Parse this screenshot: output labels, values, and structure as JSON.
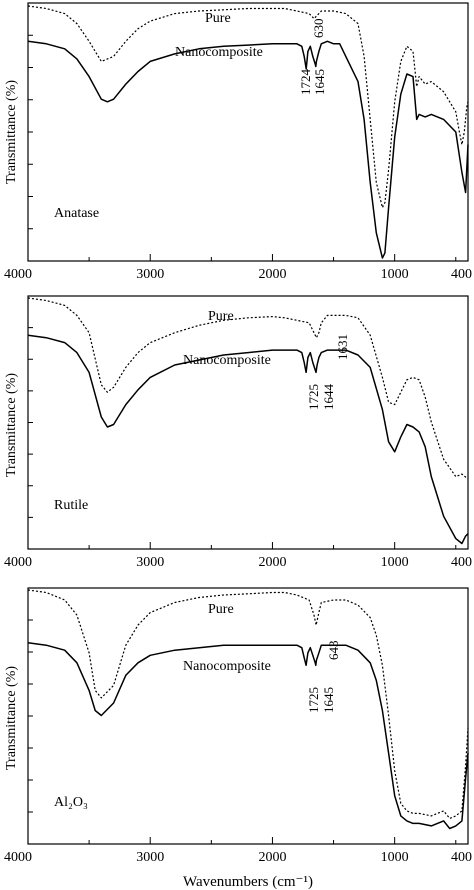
{
  "figure": {
    "ylabel": "Transmittance (%)",
    "xlabel": "Wavenumbers (cm⁻¹)"
  },
  "chart_data": [
    {
      "type": "line",
      "panel_label": "Anatase",
      "xlabel": "",
      "ylabel": "Transmittance (%)",
      "xlim": [
        4000,
        400
      ],
      "ylim": [
        0,
        100
      ],
      "x_ticks": [
        4000,
        3000,
        2000,
        1000,
        400
      ],
      "series": [
        {
          "name": "Pure",
          "style": "dotted",
          "x": [
            4000,
            3850,
            3700,
            3600,
            3500,
            3400,
            3300,
            3200,
            3100,
            3000,
            2800,
            2600,
            2400,
            2200,
            2000,
            1900,
            1800,
            1700,
            1680,
            1660,
            1640,
            1620,
            1600,
            1500,
            1400,
            1300,
            1250,
            1200,
            1150,
            1100,
            1080,
            1050,
            1000,
            950,
            900,
            850,
            820,
            800,
            750,
            700,
            650,
            600,
            550,
            500,
            470,
            450,
            430,
            410,
            400
          ],
          "y": [
            100,
            99,
            97,
            93,
            86,
            78,
            80,
            86,
            91,
            94,
            97,
            98,
            98.5,
            99,
            99,
            99,
            98,
            97,
            96,
            95,
            96,
            97,
            98,
            98,
            97,
            93,
            80,
            55,
            30,
            20,
            22,
            35,
            62,
            78,
            84,
            82,
            68,
            72,
            69,
            70,
            68,
            66,
            62,
            58,
            50,
            45,
            50,
            60,
            62
          ]
        },
        {
          "name": "Nanocomposite",
          "style": "solid",
          "x": [
            4000,
            3850,
            3700,
            3600,
            3500,
            3400,
            3350,
            3300,
            3200,
            3100,
            3000,
            2800,
            2600,
            2400,
            2200,
            2000,
            1800,
            1760,
            1740,
            1724,
            1710,
            1690,
            1670,
            1650,
            1645,
            1640,
            1620,
            1600,
            1550,
            1500,
            1450,
            1400,
            1300,
            1250,
            1200,
            1150,
            1100,
            1080,
            1050,
            1000,
            950,
            900,
            850,
            820,
            800,
            750,
            700,
            600,
            500,
            450,
            420,
            400
          ],
          "y": [
            86,
            85,
            83,
            79,
            72,
            63,
            62,
            63,
            69,
            74,
            78,
            81,
            83,
            84,
            84.5,
            85,
            85,
            84,
            80,
            75,
            82,
            84,
            80,
            77,
            76,
            78,
            82,
            85,
            86,
            85,
            85,
            80,
            70,
            55,
            30,
            10,
            0,
            2,
            20,
            48,
            65,
            73,
            72,
            55,
            57,
            56,
            57,
            55,
            50,
            34,
            26,
            45
          ]
        }
      ],
      "annotations": [
        "Pure",
        "Nanocomposite",
        "630",
        "1724",
        "1645"
      ]
    },
    {
      "type": "line",
      "panel_label": "Rutile",
      "xlabel": "",
      "ylabel": "Transmittance (%)",
      "xlim": [
        4000,
        400
      ],
      "ylim": [
        0,
        100
      ],
      "x_ticks": [
        4000,
        3000,
        2000,
        1000,
        400
      ],
      "series": [
        {
          "name": "Pure",
          "style": "dotted",
          "x": [
            4000,
            3850,
            3700,
            3600,
            3500,
            3400,
            3350,
            3300,
            3200,
            3100,
            3000,
            2800,
            2600,
            2400,
            2200,
            2000,
            1900,
            1800,
            1700,
            1660,
            1640,
            1620,
            1600,
            1550,
            1500,
            1400,
            1300,
            1200,
            1100,
            1050,
            1000,
            950,
            900,
            850,
            800,
            750,
            700,
            600,
            500,
            450,
            400
          ],
          "y": [
            100,
            99,
            97,
            93,
            86,
            65,
            62,
            64,
            72,
            78,
            82,
            86,
            89,
            91,
            92,
            92.5,
            92,
            91,
            90,
            86,
            84,
            86,
            90,
            93,
            93,
            93,
            92,
            85,
            68,
            58,
            57,
            62,
            67,
            68,
            67,
            60,
            50,
            35,
            28,
            29,
            27
          ]
        },
        {
          "name": "Nanocomposite",
          "style": "solid",
          "x": [
            4000,
            3850,
            3700,
            3600,
            3500,
            3400,
            3350,
            3300,
            3200,
            3100,
            3000,
            2800,
            2600,
            2400,
            2200,
            2000,
            1800,
            1760,
            1740,
            1725,
            1710,
            1690,
            1670,
            1650,
            1644,
            1635,
            1620,
            1600,
            1550,
            1500,
            1400,
            1300,
            1200,
            1100,
            1050,
            1000,
            950,
            900,
            850,
            800,
            750,
            700,
            600,
            500,
            450,
            420,
            400
          ],
          "y": [
            85,
            84,
            82,
            78,
            70,
            52,
            48,
            49,
            57,
            63,
            68,
            73,
            75,
            77,
            78,
            79,
            79,
            78,
            74,
            70,
            76,
            78,
            74,
            71,
            70,
            73,
            76,
            78,
            79,
            79,
            79,
            77,
            72,
            55,
            42,
            38,
            44,
            49,
            48,
            46,
            40,
            28,
            12,
            3,
            1,
            4,
            5
          ]
        }
      ],
      "annotations": [
        "Pure",
        "Nanocomposite",
        "1631",
        "1725",
        "1644"
      ]
    },
    {
      "type": "line",
      "panel_label": "Al₂O₃",
      "xlabel": "Wavenumbers (cm⁻¹)",
      "ylabel": "Transmittance (%)",
      "xlim": [
        4000,
        400
      ],
      "ylim": [
        0,
        100
      ],
      "x_ticks": [
        4000,
        3000,
        2000,
        1000,
        400
      ],
      "series": [
        {
          "name": "Pure",
          "style": "dotted",
          "x": [
            4000,
            3850,
            3700,
            3600,
            3500,
            3450,
            3400,
            3300,
            3200,
            3100,
            3000,
            2800,
            2600,
            2400,
            2200,
            2000,
            1900,
            1800,
            1700,
            1660,
            1643,
            1625,
            1600,
            1500,
            1400,
            1300,
            1200,
            1150,
            1100,
            1050,
            1000,
            950,
            900,
            850,
            800,
            700,
            600,
            550,
            500,
            450,
            420,
            400
          ],
          "y": [
            100,
            99,
            96,
            90,
            75,
            60,
            57,
            62,
            78,
            86,
            91,
            95,
            97,
            98,
            98.5,
            99,
            99,
            98,
            96,
            90,
            86,
            90,
            95,
            96,
            96,
            94,
            89,
            82,
            70,
            50,
            28,
            15,
            12,
            11,
            11,
            10,
            12,
            9,
            10,
            12,
            30,
            45
          ]
        },
        {
          "name": "Nanocomposite",
          "style": "solid",
          "x": [
            4000,
            3850,
            3700,
            3600,
            3500,
            3450,
            3400,
            3300,
            3200,
            3100,
            3000,
            2800,
            2600,
            2400,
            2200,
            2000,
            1800,
            1760,
            1740,
            1725,
            1710,
            1690,
            1670,
            1650,
            1645,
            1640,
            1620,
            1600,
            1500,
            1400,
            1300,
            1200,
            1150,
            1100,
            1050,
            1000,
            950,
            900,
            850,
            800,
            700,
            600,
            550,
            500,
            450,
            420,
            400
          ],
          "y": [
            79,
            78,
            76,
            71,
            60,
            52,
            50,
            55,
            66,
            71,
            74,
            76,
            77,
            78,
            78,
            78,
            78,
            77,
            73,
            70,
            75,
            77,
            74,
            71,
            70,
            72,
            75,
            78,
            78,
            78,
            76,
            71,
            64,
            52,
            35,
            18,
            10,
            8,
            7,
            7,
            6,
            8,
            5,
            6,
            8,
            25,
            35
          ]
        }
      ],
      "annotations": [
        "Pure",
        "Nanocomposite",
        "643",
        "1725",
        "1645"
      ]
    }
  ]
}
